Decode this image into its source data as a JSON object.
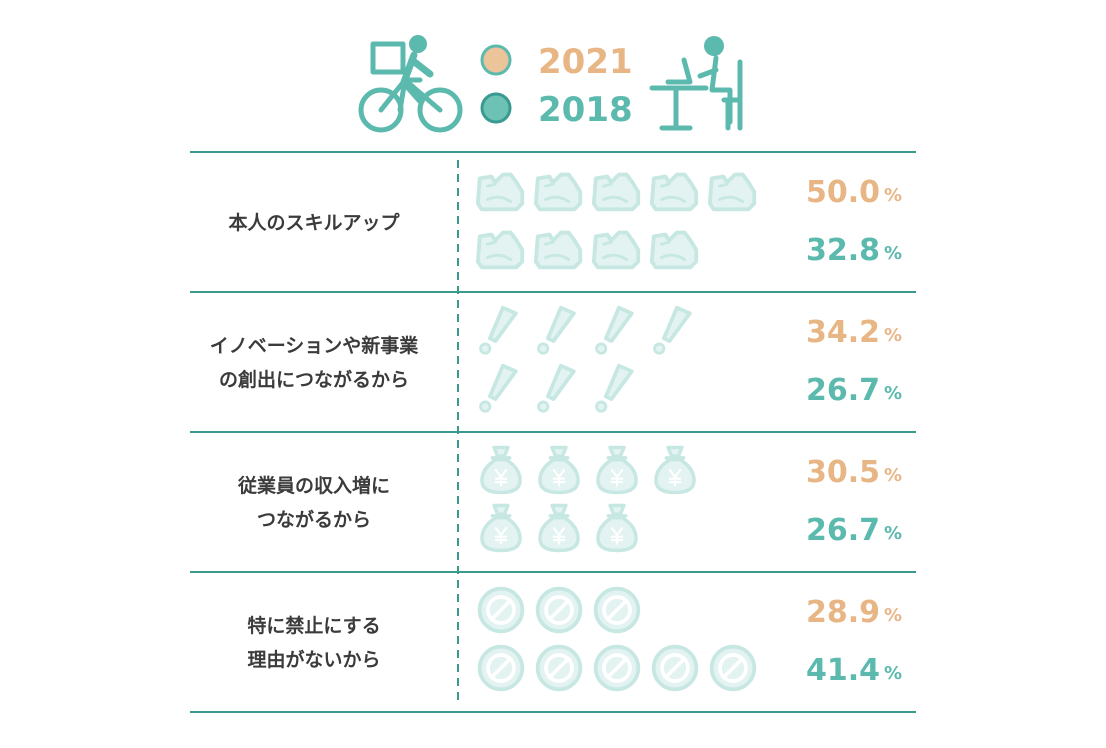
{
  "colors": {
    "y2021": "#e8b685",
    "y2021_fill": "#ecc49a",
    "y2018": "#5cb9ad",
    "y2018_fill": "#6dc2b6",
    "line": "#3a9a90",
    "text": "#3b3b3b"
  },
  "legend": {
    "items": [
      {
        "label": "2021",
        "color_key": "y2021"
      },
      {
        "label": "2018",
        "color_key": "y2018"
      }
    ],
    "left_illustration": "cyclist-icon",
    "right_illustration": "desk-worker-icon"
  },
  "chart_data": {
    "type": "pictogram",
    "unit": "%",
    "icon_unit_value": 10,
    "series": [
      {
        "name": "2021",
        "values": [
          50.0,
          34.2,
          30.5,
          28.9
        ]
      },
      {
        "name": "2018",
        "values": [
          32.8,
          26.7,
          26.7,
          41.4
        ]
      }
    ],
    "rows": [
      {
        "label_lines": [
          "本人のスキルアップ"
        ],
        "icon": "muscle-arm-icon",
        "values": [
          "50.0",
          "32.8"
        ]
      },
      {
        "label_lines": [
          "イノベーションや新事業",
          "の創出につながるから"
        ],
        "icon": "exclamation-icon",
        "values": [
          "34.2",
          "26.7"
        ]
      },
      {
        "label_lines": [
          "従業員の収入増に",
          "つながるから"
        ],
        "icon": "money-bag-yen-icon",
        "values": [
          "30.5",
          "26.7"
        ]
      },
      {
        "label_lines": [
          "特に禁止にする",
          "理由がないから"
        ],
        "icon": "prohibited-icon",
        "values": [
          "28.9",
          "41.4"
        ]
      }
    ]
  }
}
